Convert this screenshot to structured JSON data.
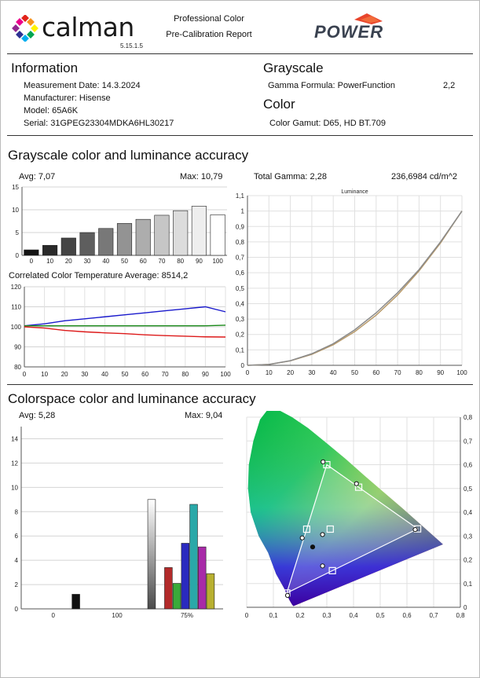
{
  "header": {
    "brand": "calman",
    "version": "5.15.1.5",
    "report_line1": "Professional Color",
    "report_line2": "Pre-Calibration Report",
    "partner_logo": "POWER",
    "logo_colors": [
      "#e2231a",
      "#f7941d",
      "#fff200",
      "#00a651",
      "#00aeef",
      "#2e3192",
      "#92278f",
      "#ec008c"
    ]
  },
  "information": {
    "heading": "Information",
    "measurement_date": "Measurement Date: 14.3.2024",
    "manufacturer": "Manufacturer: Hisense",
    "model": "Model: 65A6K",
    "serial": "Serial: 31GPEG23304MDKA6HL30217"
  },
  "grayscale": {
    "heading": "Grayscale",
    "gamma_formula": "Gamma Formula: PowerFunction",
    "gamma_value": "2,2"
  },
  "color": {
    "heading": "Color",
    "gamut": "Color Gamut: D65, HD BT.709"
  },
  "section1": {
    "title": "Grayscale color and luminance accuracy",
    "avg": "Avg: 7,07",
    "max": "Max: 10,79",
    "total_gamma": "Total Gamma: 2,28",
    "luminance": "236,6984 cd/m^2",
    "cct_avg": "Correlated Color Temperature Average: 8514,2"
  },
  "section2": {
    "title": "Colorspace color and luminance accuracy",
    "avg": "Avg: 5,28",
    "max": "Max: 9,04"
  },
  "chart_data": [
    {
      "type": "bar",
      "name": "grayscale-deltae",
      "categories": [
        "0",
        "10",
        "20",
        "30",
        "40",
        "50",
        "60",
        "70",
        "80",
        "90",
        "100"
      ],
      "values": [
        1.2,
        2.2,
        3.8,
        5.0,
        5.9,
        7.0,
        7.9,
        8.8,
        9.8,
        10.79,
        8.9
      ],
      "colors": [
        "#141414",
        "#2a2a2a",
        "#444444",
        "#5e5e5e",
        "#787878",
        "#939393",
        "#adadad",
        "#c6c6c6",
        "#dcdcdc",
        "#eeeeee",
        "#ffffff"
      ],
      "ylim": [
        0,
        15
      ],
      "yticks": [
        "0",
        "5",
        "10",
        "15"
      ]
    },
    {
      "type": "line",
      "name": "rgb-balance",
      "x": [
        0,
        10,
        20,
        30,
        40,
        50,
        60,
        70,
        80,
        90,
        100
      ],
      "series": [
        {
          "color": "#1a1acc",
          "values": [
            100.5,
            101.5,
            103,
            104,
            105,
            106,
            107,
            108,
            109,
            110,
            107.5
          ]
        },
        {
          "color": "#1a8a1a",
          "values": [
            100.5,
            100.5,
            100.5,
            100.5,
            100.5,
            100.5,
            100.5,
            100.5,
            100.5,
            100.5,
            100.8
          ]
        },
        {
          "color": "#dd1a1a",
          "values": [
            100.0,
            99.4,
            98.2,
            97.5,
            97.0,
            96.6,
            96.0,
            95.6,
            95.3,
            95.0,
            94.9
          ]
        }
      ],
      "xticks": [
        "0",
        "10",
        "20",
        "30",
        "40",
        "50",
        "60",
        "70",
        "80",
        "90",
        "100"
      ],
      "yticks": [
        "80",
        "90",
        "100",
        "110",
        "120"
      ],
      "ylim": [
        80,
        120
      ]
    },
    {
      "type": "line",
      "name": "luminance",
      "title": "Luminance",
      "x": [
        0,
        10,
        20,
        30,
        40,
        50,
        60,
        70,
        80,
        90,
        100
      ],
      "series": [
        {
          "color": "#b89a6a",
          "values": [
            0,
            0.006,
            0.029,
            0.071,
            0.133,
            0.218,
            0.325,
            0.456,
            0.612,
            0.793,
            1.0
          ]
        },
        {
          "color": "#8a8a8a",
          "values": [
            0,
            0.006,
            0.03,
            0.075,
            0.14,
            0.23,
            0.34,
            0.47,
            0.62,
            0.8,
            1.0
          ]
        }
      ],
      "xticks": [
        "0",
        "10",
        "20",
        "30",
        "40",
        "50",
        "60",
        "70",
        "80",
        "90",
        "100"
      ],
      "yticks": [
        "0",
        "0,1",
        "0,2",
        "0,3",
        "0,4",
        "0,5",
        "0,6",
        "0,7",
        "0,8",
        "0,9",
        "1",
        "1,1"
      ],
      "ylim": [
        0,
        1.1
      ]
    },
    {
      "type": "bar",
      "name": "colorspace-deltae",
      "groups": [
        "0",
        "100",
        "75%"
      ],
      "bars": [
        {
          "slot": 6,
          "value": 1.2,
          "color": "#111111"
        },
        {
          "slot": 15,
          "value": 9.0,
          "color": "#f0f0f0"
        },
        {
          "slot": 17,
          "value": 3.4,
          "color": "#b32a2a"
        },
        {
          "slot": 18,
          "value": 2.1,
          "color": "#3aaa3a"
        },
        {
          "slot": 19,
          "value": 5.4,
          "color": "#2a2abf"
        },
        {
          "slot": 20,
          "value": 8.6,
          "color": "#2aa8a8"
        },
        {
          "slot": 21,
          "value": 5.1,
          "color": "#a82aa8"
        },
        {
          "slot": 22,
          "value": 2.9,
          "color": "#b8b030"
        }
      ],
      "yticks": [
        "0",
        "2",
        "4",
        "6",
        "8",
        "10",
        "12",
        "14"
      ],
      "ylim": [
        0,
        15
      ]
    },
    {
      "type": "scatter",
      "name": "cie-chromaticity",
      "xticks": [
        "0",
        "0,1",
        "0,2",
        "0,3",
        "0,4",
        "0,5",
        "0,6",
        "0,7",
        "0,8"
      ],
      "yticks": [
        "0",
        "0,1",
        "0,2",
        "0,3",
        "0,4",
        "0,5",
        "0,6",
        "0,7",
        "0,8"
      ],
      "targets": [
        [
          0.64,
          0.33
        ],
        [
          0.3,
          0.6
        ],
        [
          0.15,
          0.06
        ],
        [
          0.3127,
          0.329
        ],
        [
          0.4193,
          0.5053
        ],
        [
          0.2247,
          0.3287
        ],
        [
          0.3209,
          0.1542
        ]
      ],
      "measured": [
        [
          0.631,
          0.327
        ],
        [
          0.286,
          0.612
        ],
        [
          0.153,
          0.05
        ],
        [
          0.284,
          0.306
        ],
        [
          0.411,
          0.52
        ],
        [
          0.208,
          0.292
        ],
        [
          0.284,
          0.174
        ],
        [
          0.247,
          0.254
        ]
      ],
      "gamut_triangle": [
        [
          0.64,
          0.33
        ],
        [
          0.3,
          0.6
        ],
        [
          0.15,
          0.06
        ]
      ]
    }
  ]
}
